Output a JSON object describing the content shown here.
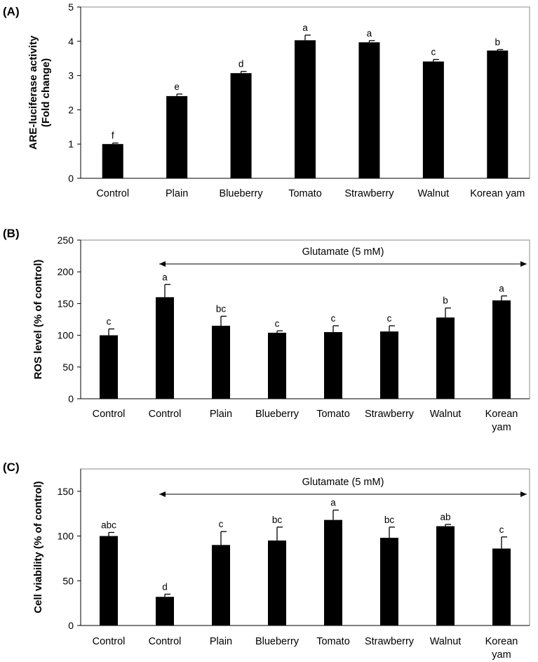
{
  "chart_data": [
    {
      "type": "bar",
      "panel": "(A)",
      "title": "",
      "xlabel": "",
      "ylabel": [
        "ARE-luciferase activity",
        "(Fold change)"
      ],
      "ylim": [
        0,
        5
      ],
      "yticks": [
        0,
        1,
        2,
        3,
        4,
        5
      ],
      "categories": [
        [
          "Control"
        ],
        [
          "Plain"
        ],
        [
          "Blueberry"
        ],
        [
          "Tomato"
        ],
        [
          "Strawberry"
        ],
        [
          "Walnut"
        ],
        [
          "Korean yam"
        ]
      ],
      "values": [
        1.0,
        2.4,
        3.07,
        4.03,
        3.97,
        3.41,
        3.73
      ],
      "errors": [
        0.03,
        0.06,
        0.05,
        0.15,
        0.05,
        0.06,
        0.03
      ],
      "letters": [
        "f",
        "e",
        "d",
        "a",
        "a",
        "c",
        "b"
      ],
      "annotation": null
    },
    {
      "type": "bar",
      "panel": "(B)",
      "title": "",
      "xlabel": "",
      "ylabel": [
        "ROS level (% of control)"
      ],
      "ylim": [
        0,
        250
      ],
      "yticks": [
        0,
        50,
        100,
        150,
        200,
        250
      ],
      "categories": [
        [
          "Control"
        ],
        [
          "Control"
        ],
        [
          "Plain"
        ],
        [
          "Blueberry"
        ],
        [
          "Tomato"
        ],
        [
          "Strawberry"
        ],
        [
          "Walnut"
        ],
        [
          "Korean",
          "yam"
        ]
      ],
      "values": [
        100,
        160,
        115,
        104,
        105,
        106,
        128,
        155
      ],
      "errors": [
        10,
        20,
        15,
        3,
        10,
        9,
        15,
        7
      ],
      "letters": [
        "c",
        "a",
        "bc",
        "c",
        "c",
        "c",
        "b",
        "a"
      ],
      "annotation": {
        "text": "Glutamate (5 mM)",
        "from_index": 1,
        "to_index": 7
      }
    },
    {
      "type": "bar",
      "panel": "(C)",
      "title": "",
      "xlabel": "",
      "ylabel": [
        "Cell viability (% of control)"
      ],
      "ylim": [
        0,
        175
      ],
      "yticks": [
        0,
        50,
        100,
        150
      ],
      "categories": [
        [
          "Control"
        ],
        [
          "Control"
        ],
        [
          "Plain"
        ],
        [
          "Blueberry"
        ],
        [
          "Tomato"
        ],
        [
          "Strawberry"
        ],
        [
          "Walnut"
        ],
        [
          "Korean",
          "yam"
        ]
      ],
      "values": [
        100,
        32,
        90,
        95,
        118,
        98,
        111,
        86
      ],
      "errors": [
        4,
        3,
        15,
        15,
        11,
        12,
        2,
        13
      ],
      "letters": [
        "abc",
        "d",
        "c",
        "bc",
        "a",
        "bc",
        "ab",
        "c"
      ],
      "annotation": {
        "text": "Glutamate (5 mM)",
        "from_index": 1,
        "to_index": 7
      }
    }
  ]
}
